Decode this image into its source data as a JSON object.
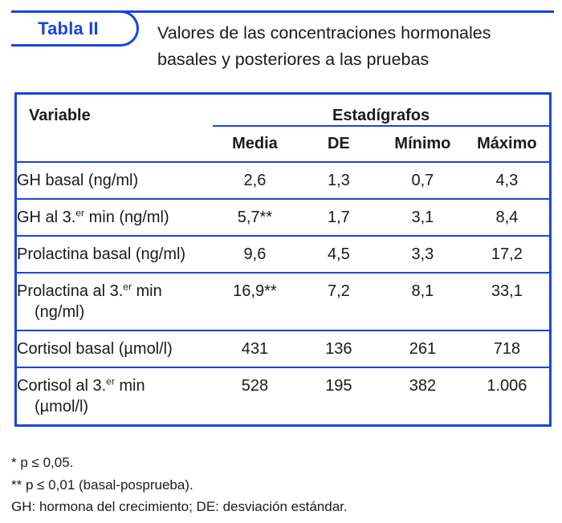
{
  "colors": {
    "accent": "#1b44da",
    "text": "#1a1a1a",
    "background": "#ffffff"
  },
  "header": {
    "tab_label": "Tabla II",
    "title_line1": "Valores de las concentraciones hormonales",
    "title_line2": "basales y posteriores a las pruebas"
  },
  "table": {
    "variable_header": "Variable",
    "group_header": "Estadígrafos",
    "columns": [
      "Media",
      "DE",
      "Mínimo",
      "Máximo"
    ],
    "rows": [
      {
        "label": "GH basal (ng/ml)",
        "label_sup": "",
        "label_rest": "",
        "label_line2": "",
        "values": [
          "2,6",
          "1,3",
          "0,7",
          "4,3"
        ]
      },
      {
        "label": "GH al 3.",
        "label_sup": "er",
        "label_rest": " min (ng/ml)",
        "label_line2": "",
        "values": [
          "5,7**",
          "1,7",
          "3,1",
          "8,4"
        ]
      },
      {
        "label": "Prolactina basal (ng/ml)",
        "label_sup": "",
        "label_rest": "",
        "label_line2": "",
        "values": [
          "9,6",
          "4,5",
          "3,3",
          "17,2"
        ]
      },
      {
        "label": "Prolactina al 3.",
        "label_sup": "er",
        "label_rest": " min",
        "label_line2": "(ng/ml)",
        "values": [
          "16,9**",
          "7,2",
          "8,1",
          "33,1"
        ]
      },
      {
        "label": "Cortisol basal (µmol/l)",
        "label_sup": "",
        "label_rest": "",
        "label_line2": "",
        "values": [
          "431",
          "136",
          "261",
          "718"
        ]
      },
      {
        "label": "Cortisol al 3.",
        "label_sup": "er",
        "label_rest": " min",
        "label_line2": "(µmol/l)",
        "values": [
          "528",
          "195",
          "382",
          "1.006"
        ]
      }
    ]
  },
  "footnotes": [
    "* p ≤ 0,05.",
    "** p ≤ 0,01 (basal-posprueba).",
    "GH: hormona del crecimiento; DE: desviación estándar."
  ]
}
